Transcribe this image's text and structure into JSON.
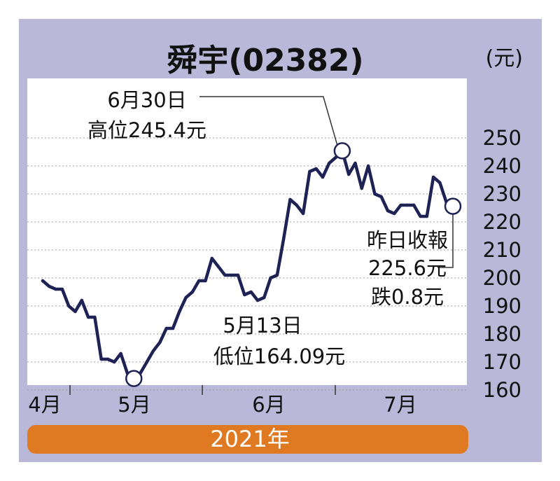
{
  "title": "舜宇(02382)",
  "unit": "(元)",
  "colors": {
    "background": "#b9b8d9",
    "plot": "#ffffff",
    "line": "#1f2255",
    "band": "#e07a22",
    "band_text": "#ffffff"
  },
  "annotations": {
    "high_date": "6月30日",
    "high_text": "高位245.4元",
    "low_date": "5月13日",
    "low_text": "低位164.09元",
    "close_title": "昨日收報",
    "close_value": "225.6元",
    "close_change": "跌0.8元"
  },
  "year_label": "2021年",
  "chart_data": {
    "type": "line",
    "title": "舜宇(02382)",
    "ylabel": "(元)",
    "ylim": [
      158,
      256
    ],
    "yticks": [
      250,
      240,
      230,
      220,
      210,
      200,
      190,
      180,
      170,
      160
    ],
    "ytick_labels": [
      "250",
      "240",
      "230",
      "220",
      "210",
      "200",
      "190",
      "180",
      "170",
      "160"
    ],
    "month_labels": [
      "4月",
      "5月",
      "6月",
      "7月"
    ],
    "grid": true,
    "series": [
      {
        "values": [
          199,
          197,
          196,
          196,
          190,
          188,
          192,
          186,
          186,
          171,
          171,
          170,
          173,
          166,
          164.09,
          166,
          170,
          174,
          177,
          182,
          182,
          188,
          193,
          195,
          199,
          199,
          207,
          204,
          201,
          201,
          201,
          194,
          195,
          192,
          193,
          200,
          201,
          214,
          228,
          226,
          223,
          238,
          239,
          236,
          241,
          243,
          245.4,
          237,
          241,
          232,
          240,
          230,
          229,
          224,
          223,
          226,
          226,
          226,
          222,
          222,
          236,
          234,
          227,
          225.6
        ]
      }
    ],
    "high": {
      "date": "6月30日",
      "value": 245.4
    },
    "low": {
      "date": "5月13日",
      "value": 164.09
    },
    "last": {
      "value": 225.6,
      "change": -0.8
    }
  }
}
